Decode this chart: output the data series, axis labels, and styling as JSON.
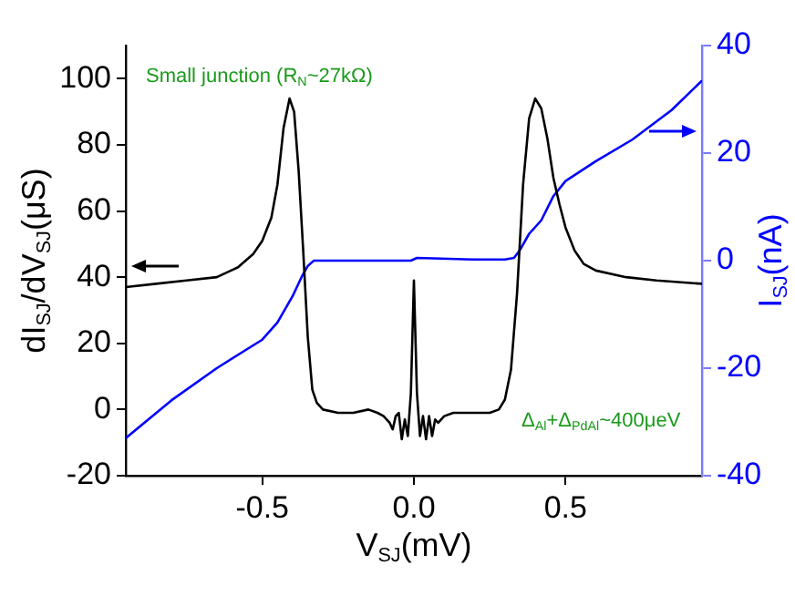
{
  "chart_data": {
    "type": "line",
    "xlabel": "V$_{SJ}$(mV)",
    "ylabel": "dI$_{SJ}$/dV$_{SJ}$(μS)",
    "y2label": "I$_{SJ}$(nA)",
    "annotations": [
      "Small junction (R$_{N}$~27kΩ)",
      "Δ$_{Al}$+Δ$_{PdAl}$~400μeV"
    ],
    "xlim": [
      -0.95,
      0.95
    ],
    "xticks": [
      -0.5,
      {
        "value": 0,
        "label": "0.0"
      },
      0.5
    ],
    "ylim": [
      -20,
      110
    ],
    "yticks": [
      -20,
      0,
      20,
      40,
      60,
      80,
      100
    ],
    "y2lim": [
      -40,
      40
    ],
    "y2ticks": [
      -40,
      -20,
      0,
      20,
      40
    ],
    "grid": false,
    "legend": false,
    "marker": "none",
    "line_style": "solid",
    "series": [
      {
        "color": "#000000",
        "x": [
          -0.95,
          -0.85,
          -0.75,
          -0.65,
          -0.58,
          -0.53,
          -0.5,
          -0.47,
          -0.45,
          -0.43,
          -0.41,
          -0.395,
          -0.38,
          -0.365,
          -0.35,
          -0.335,
          -0.32,
          -0.3,
          -0.25,
          -0.2,
          -0.15,
          -0.12,
          -0.1,
          -0.08,
          -0.07,
          -0.06,
          -0.05,
          -0.04,
          -0.03,
          -0.02,
          -0.01,
          0,
          0.01,
          0.02,
          0.03,
          0.04,
          0.05,
          0.06,
          0.07,
          0.08,
          0.1,
          0.13,
          0.15,
          0.2,
          0.25,
          0.28,
          0.3,
          0.32,
          0.34,
          0.36,
          0.38,
          0.4,
          0.42,
          0.44,
          0.46,
          0.48,
          0.5,
          0.53,
          0.56,
          0.6,
          0.7,
          0.8,
          0.95
        ],
        "values": [
          37,
          38,
          39,
          40,
          43,
          47,
          51,
          58,
          68,
          85,
          94,
          90,
          72,
          48,
          22,
          6,
          2,
          0,
          -1,
          -1,
          0,
          -1,
          -2,
          -4,
          -6,
          -2,
          -1,
          -9,
          -3,
          -8,
          5,
          39,
          5,
          -8,
          -2,
          -9,
          -2,
          -8,
          -3,
          -4,
          -2,
          -1,
          -1,
          -1,
          -1,
          0,
          3,
          12,
          35,
          68,
          88,
          94,
          91,
          82,
          70,
          62,
          55,
          48,
          44,
          42,
          40,
          39,
          38
        ]
      },
      {
        "color": "#0000ff",
        "axis": "y2",
        "x": [
          -0.95,
          -0.8,
          -0.65,
          -0.5,
          -0.45,
          -0.4,
          -0.37,
          -0.35,
          -0.33,
          -0.2,
          -0.01,
          0.01,
          0.2,
          0.3,
          0.33,
          0.35,
          0.38,
          0.42,
          0.46,
          0.5,
          0.6,
          0.72,
          0.85,
          0.95
        ],
        "values": [
          -33,
          -26,
          -20,
          -14.7,
          -11.5,
          -6.6,
          -3,
          -1,
          0,
          0,
          0,
          0.5,
          0.2,
          0.2,
          0.5,
          2,
          5,
          7.5,
          12,
          14.8,
          18.5,
          22.5,
          28,
          33.5
        ]
      }
    ]
  }
}
